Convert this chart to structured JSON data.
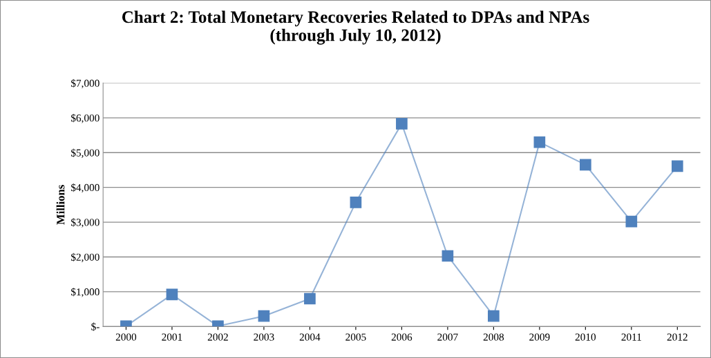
{
  "chart_data": {
    "type": "line",
    "title": "Chart 2: Total Monetary Recoveries Related to DPAs and NPAs\n(through July 10, 2012)",
    "ylabel": "Millions",
    "categories": [
      "2000",
      "2001",
      "2002",
      "2003",
      "2004",
      "2005",
      "2006",
      "2007",
      "2008",
      "2009",
      "2010",
      "2011",
      "2012"
    ],
    "series": [
      {
        "color": "#4f81bd",
        "values": [
          10,
          920,
          10,
          300,
          800,
          3570,
          5830,
          2030,
          300,
          5300,
          4650,
          3020,
          4610
        ]
      }
    ],
    "ylim": [
      0,
      7000
    ],
    "yticks": [
      {
        "value": 0,
        "label": "$-"
      },
      {
        "value": 1000,
        "label": "$1,000"
      },
      {
        "value": 2000,
        "label": "$2,000"
      },
      {
        "value": 3000,
        "label": "$3,000"
      },
      {
        "value": 4000,
        "label": "$4,000"
      },
      {
        "value": 5000,
        "label": "$5,000"
      },
      {
        "value": 6000,
        "label": "$6,000"
      },
      {
        "value": 7000,
        "label": "$7,000"
      }
    ],
    "grid": "y",
    "marker": "square",
    "line_style": "solid",
    "legend": false
  }
}
